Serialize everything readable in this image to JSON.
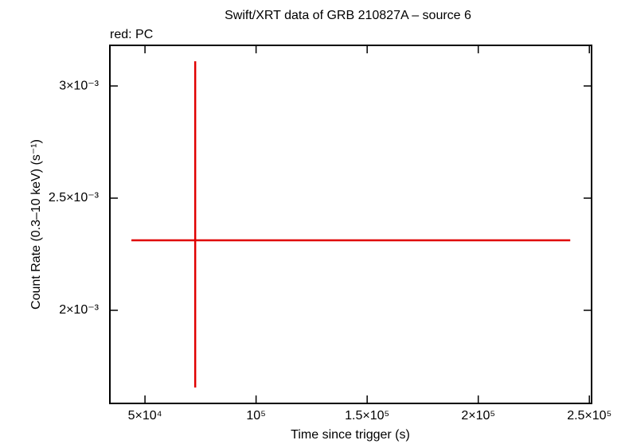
{
  "chart_data": {
    "type": "errorbar",
    "title": "Swift/XRT data of GRB 210827A – source 6",
    "subtitle": "red: PC",
    "x_label": "Time since trigger (s)",
    "y_label": "Count Rate (0.3–10 keV) (s⁻¹)",
    "series": [
      {
        "name": "PC",
        "color": "#e00000",
        "x": [
          72600
        ],
        "xerr_minus": [
          28700
        ],
        "xerr_plus": [
          168800
        ],
        "values": [
          0.002312
        ],
        "yerr_minus": [
          0.000656
        ],
        "yerr_plus": [
          0.000798
        ]
      }
    ],
    "xlim": [
      34200,
      251000
    ],
    "xticks": [
      {
        "value": 50000,
        "label": "5×10⁴"
      },
      {
        "value": 100000,
        "label": "10⁵"
      },
      {
        "value": 150000,
        "label": "1.5×10⁵"
      },
      {
        "value": 200000,
        "label": "2×10⁵"
      },
      {
        "value": 250000,
        "label": "2.5×10⁵"
      }
    ],
    "ylim": [
      0.001585,
      0.003181
    ],
    "yticks": [
      {
        "value": 0.002,
        "label": "2×10⁻³"
      },
      {
        "value": 0.0025,
        "label": "2.5×10⁻³"
      },
      {
        "value": 0.003,
        "label": "3×10⁻³"
      }
    ]
  }
}
